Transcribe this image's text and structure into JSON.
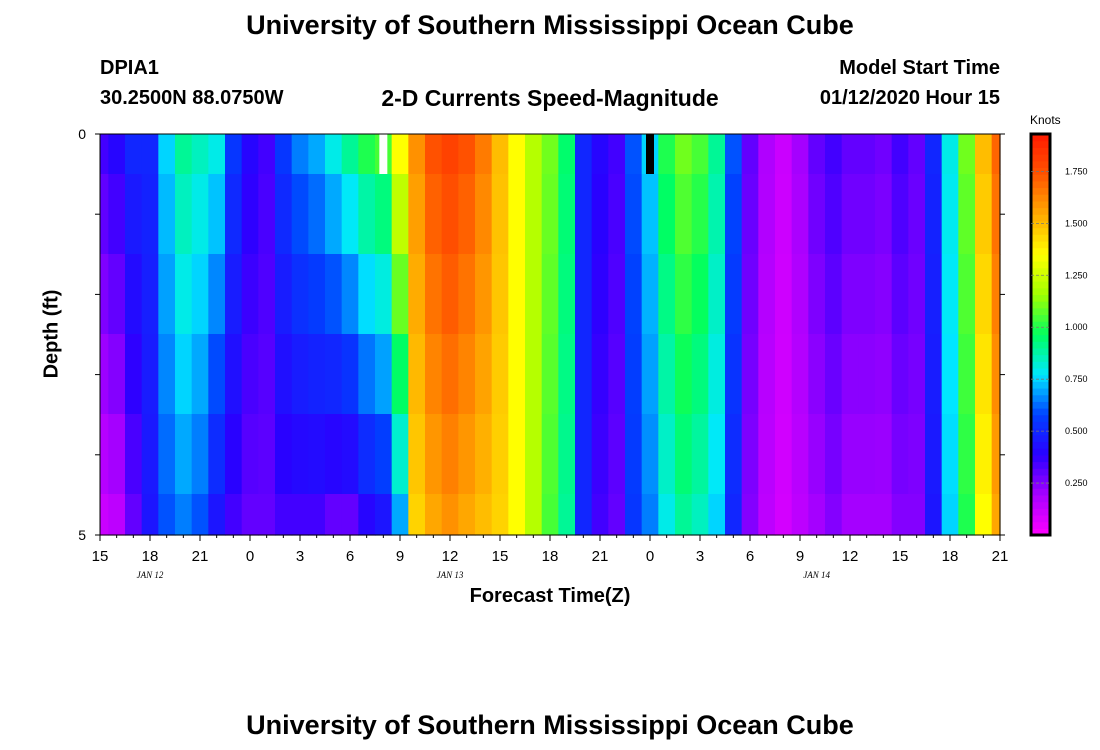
{
  "header": {
    "title_top": "University of Southern Mississippi Ocean Cube",
    "title_bottom": "University of Southern Mississippi Ocean Cube",
    "station_id": "DPIA1",
    "station_coords": "30.2500N 88.0750W",
    "plot_title": "2-D Currents Speed-Magnitude",
    "model_start_label": "Model Start Time",
    "model_start_value": "01/12/2020 Hour 15"
  },
  "colorbar": {
    "unit": "Knots",
    "ticks": [
      "1.750",
      "1.500",
      "1.250",
      "1.000",
      "0.750",
      "0.500",
      "0.250"
    ],
    "colors": [
      "#ff00ff",
      "#aa00ff",
      "#2a00ff",
      "#0040ff",
      "#00e8ff",
      "#00ff60",
      "#a0ff00",
      "#ffff00",
      "#ffaa00",
      "#ff5500",
      "#ff1a00"
    ]
  },
  "chart_data": {
    "type": "heatmap",
    "title": "2-D Currents Speed-Magnitude",
    "xlabel": "Forecast Time(Z)",
    "ylabel": "Depth (ft)",
    "x_ticks": [
      "15",
      "18",
      "21",
      "0",
      "3",
      "6",
      "9",
      "12",
      "15",
      "18",
      "21",
      "0",
      "3",
      "6",
      "9",
      "12",
      "15",
      "18",
      "21"
    ],
    "date_labels": [
      {
        "text": "JAN 12",
        "hour_index": 3
      },
      {
        "text": "JAN 13",
        "hour_index": 21
      },
      {
        "text": "JAN 14",
        "hour_index": 43
      }
    ],
    "y_ticks": [
      "0",
      "5"
    ],
    "ylim": [
      0,
      5
    ],
    "hours_start": "01/12/2020 15Z",
    "hours_count": 55,
    "value_range": [
      0,
      1.93
    ],
    "depth_levels_ft": [
      0,
      0.5,
      1.5,
      2.5,
      3.5,
      4.5
    ],
    "profile_surface": [
      0.35,
      0.4,
      0.5,
      0.5,
      0.75,
      0.9,
      0.85,
      0.8,
      0.55,
      0.4,
      0.35,
      0.55,
      0.65,
      0.7,
      0.8,
      0.9,
      1.0,
      1.05,
      1.35,
      1.6,
      1.75,
      1.8,
      1.75,
      1.65,
      1.5,
      1.35,
      1.2,
      1.1,
      0.95,
      0.5,
      0.4,
      0.35,
      0.6,
      0.75,
      1.0,
      1.1,
      1.05,
      0.9,
      0.6,
      0.3,
      0.18,
      0.12,
      0.2,
      0.3,
      0.35,
      0.3,
      0.3,
      0.28,
      0.35,
      0.3,
      0.5,
      0.8,
      1.1,
      1.5,
      1.7
    ],
    "profile_bottom": [
      0.12,
      0.15,
      0.3,
      0.45,
      0.6,
      0.65,
      0.6,
      0.45,
      0.35,
      0.3,
      0.3,
      0.35,
      0.35,
      0.35,
      0.3,
      0.3,
      0.4,
      0.45,
      0.7,
      1.45,
      1.55,
      1.6,
      1.55,
      1.5,
      1.45,
      1.35,
      1.2,
      1.05,
      0.9,
      0.5,
      0.35,
      0.3,
      0.55,
      0.65,
      0.8,
      0.9,
      0.85,
      0.75,
      0.5,
      0.25,
      0.15,
      0.1,
      0.15,
      0.2,
      0.25,
      0.2,
      0.2,
      0.2,
      0.25,
      0.25,
      0.45,
      0.75,
      1.0,
      1.35,
      1.55
    ],
    "markers": [
      {
        "label": "white-marker",
        "hour_index": 17,
        "color": "#ffffff"
      },
      {
        "label": "black-marker",
        "hour_index": 33,
        "color": "#000000"
      }
    ]
  }
}
